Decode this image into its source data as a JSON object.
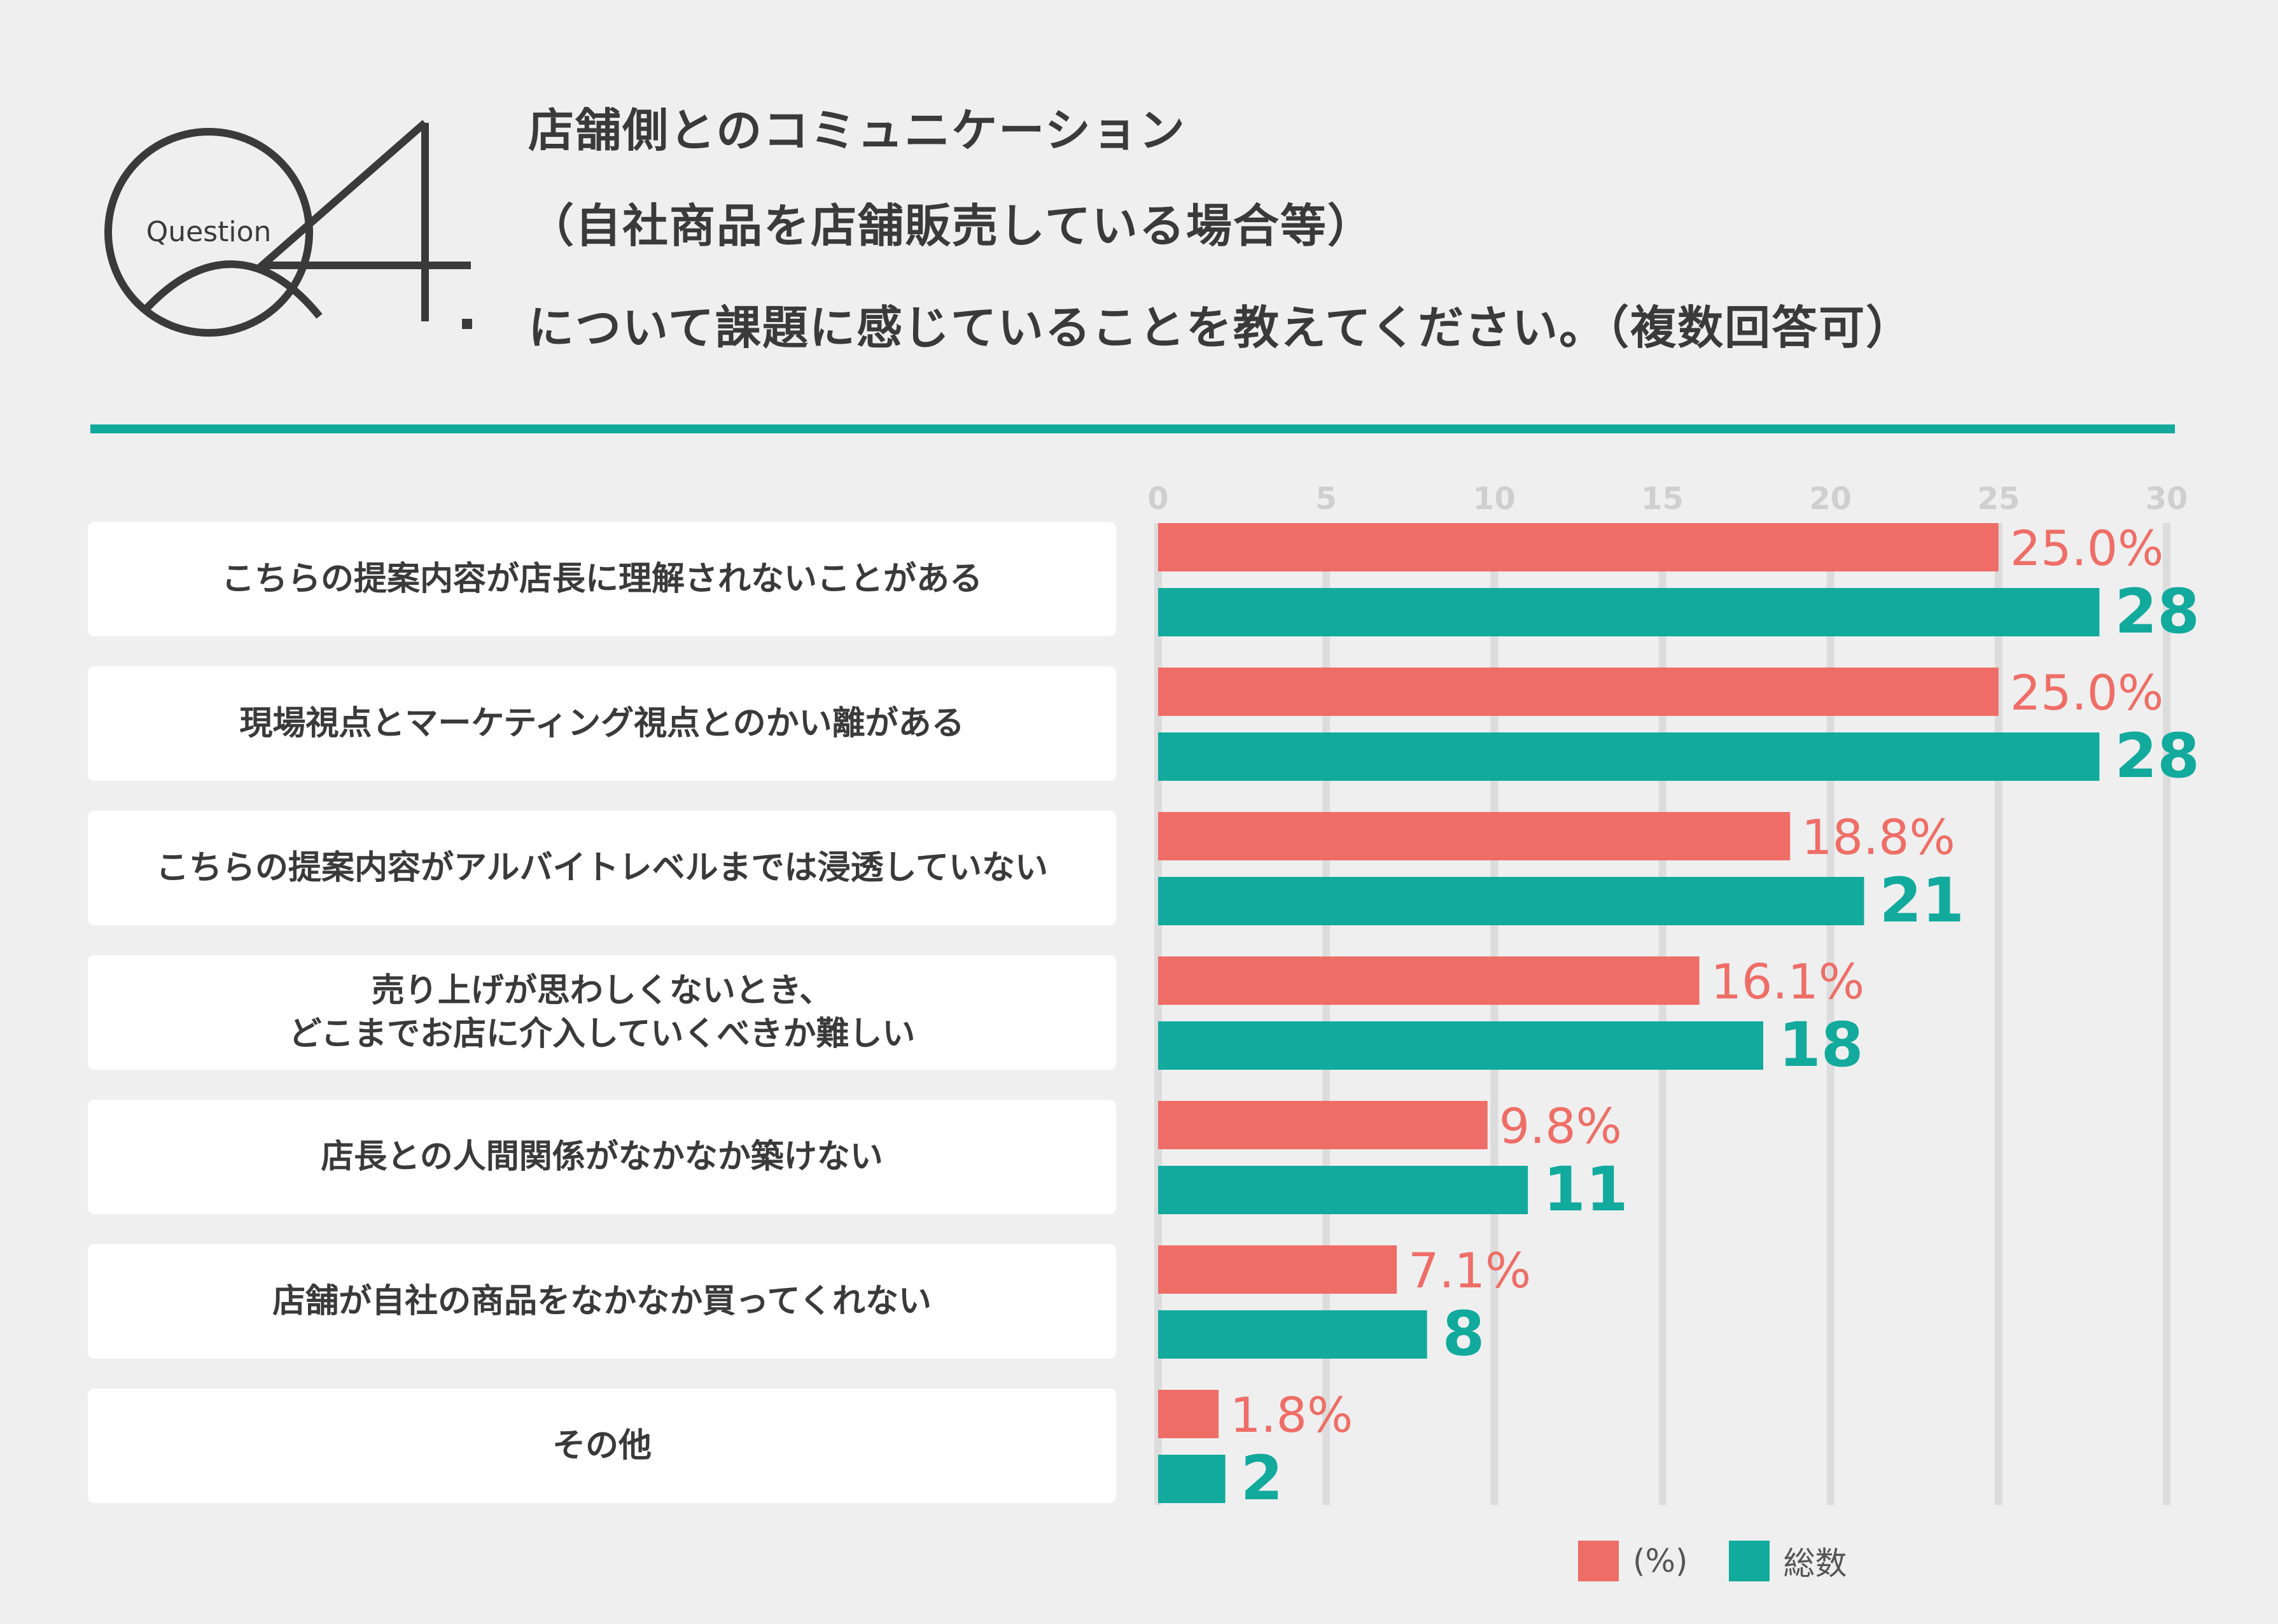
{
  "logo": {
    "small_text": "Question",
    "big_text": "Q4",
    "dot": "."
  },
  "question": {
    "line1": "店舗側とのコミュニケーション",
    "line2": "（自社商品を店舗販売している場合等）",
    "line3": "について課題に感じていることを教えてください。（複数回答可）"
  },
  "labels": [
    "こちらの提案内容が店長に理解されないことがある",
    "現場視点とマーケティング視点とのかい離がある",
    "こちらの提案内容がアルバイトレベルまでは浸透していない",
    "売り上げが思わしくないとき、\nどこまでお店に介入していくべきか難しい",
    "店長との人間関係がなかなか築けない",
    "店舗が自社の商品をなかなか買ってくれない",
    "その他"
  ],
  "legend": {
    "percent_label": "(%)",
    "total_label": "総数"
  },
  "colors": {
    "teal": "#12aa9d",
    "coral": "#ee6e67",
    "grid": "#dcdcdc",
    "tick": "#cfcfcf",
    "text": "#3a3a3a"
  },
  "chart_data": {
    "type": "bar",
    "orientation": "horizontal",
    "categories": [
      "こちらの提案内容が店長に理解されないことがある",
      "現場視点とマーケティング視点とのかい離がある",
      "こちらの提案内容がアルバイトレベルまでは浸透していない",
      "売り上げが思わしくないとき、どこまでお店に介入していくべきか難しい",
      "店長との人間関係がなかなか築けない",
      "店舗が自社の商品をなかなか買ってくれない",
      "その他"
    ],
    "series": [
      {
        "name": "(%)",
        "values": [
          25.0,
          25.0,
          18.8,
          16.1,
          9.8,
          7.1,
          1.8
        ],
        "labels": [
          "25.0%",
          "25.0%",
          "18.8%",
          "16.1%",
          "9.8%",
          "7.1%",
          "1.8%"
        ]
      },
      {
        "name": "総数",
        "values": [
          28,
          28,
          21,
          18,
          11,
          8,
          2
        ],
        "labels": [
          "28",
          "28",
          "21",
          "18",
          "11",
          "8",
          "2"
        ]
      }
    ],
    "xticks": [
      0,
      5,
      10,
      15,
      20,
      25,
      30
    ],
    "xlim": [
      0,
      30
    ],
    "grid": true,
    "legend_position": "bottom-right"
  }
}
